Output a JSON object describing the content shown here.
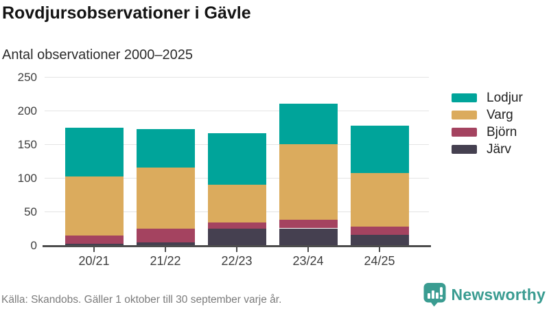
{
  "header": {
    "title": "Rovdjursobservationer i Gävle",
    "subtitle": "Antal observationer 2000–2025"
  },
  "chart_data": {
    "type": "bar",
    "stacked": true,
    "title": "Rovdjursobservationer i Gävle",
    "subtitle": "Antal observationer 2000–2025",
    "categories": [
      "20/21",
      "21/22",
      "22/23",
      "23/24",
      "24/25"
    ],
    "series": [
      {
        "name": "Järv",
        "color": "#454050",
        "values": [
          2,
          4,
          24,
          25,
          15
        ]
      },
      {
        "name": "Björn",
        "color": "#a44360",
        "values": [
          12,
          20,
          10,
          13,
          13
        ]
      },
      {
        "name": "Varg",
        "color": "#dbab5d",
        "values": [
          88,
          91,
          56,
          112,
          79
        ]
      },
      {
        "name": "Lodjur",
        "color": "#00a49a",
        "values": [
          73,
          57,
          76,
          60,
          71
        ]
      }
    ],
    "totals": [
      175,
      172,
      166,
      210,
      178
    ],
    "legend_order": [
      "Lodjur",
      "Varg",
      "Björn",
      "Järv"
    ],
    "legend_position": "right",
    "xlabel": "",
    "ylabel": "",
    "ylim": [
      0,
      250
    ],
    "yticks": [
      0,
      50,
      100,
      150,
      200,
      250
    ],
    "grid": true
  },
  "footer": {
    "source": "Källa: Skandobs. Gäller 1 oktober till 30 september varje år.",
    "brand": "Newsworthy"
  },
  "colors": {
    "accent_teal": "#00a49a",
    "gold": "#dbab5d",
    "maroon": "#a44360",
    "dark_slate": "#454050",
    "brand_teal": "#3a9c91",
    "grid": "#e4e4e4",
    "axis": "#4d4d4d"
  }
}
